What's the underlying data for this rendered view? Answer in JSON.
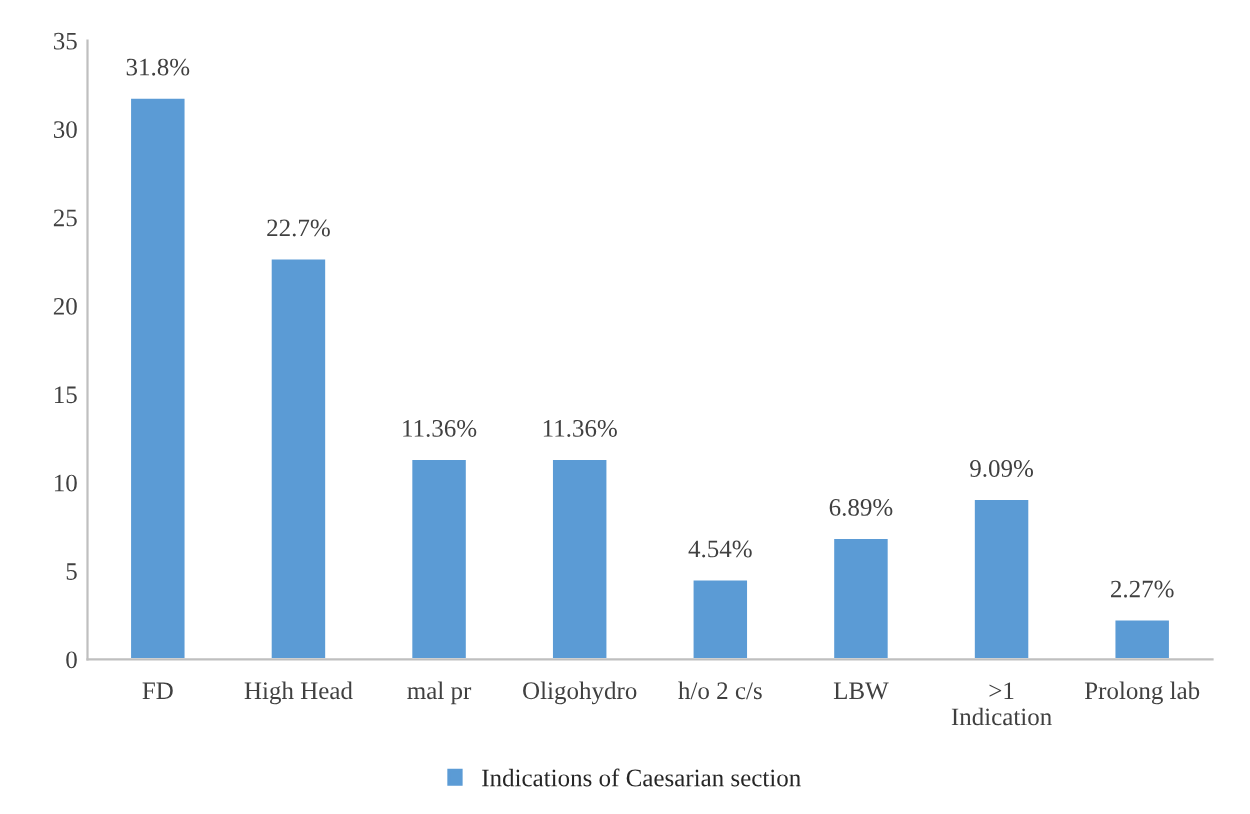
{
  "chart_data": {
    "type": "bar",
    "categories": [
      "FD",
      "High Head",
      "mal pr",
      "Oligohydro",
      "h/o 2 c/s",
      "LBW",
      ">1\nIndication",
      "Prolong lab"
    ],
    "series": [
      {
        "name": "Indications of Caesarian section",
        "color": "#5b9bd5",
        "values": [
          31.8,
          22.7,
          11.36,
          11.36,
          4.54,
          6.89,
          9.09,
          2.27
        ],
        "value_labels": [
          "31.8%",
          "22.7%",
          "11.36%",
          "11.36%",
          "4.54%",
          "6.89%",
          "9.09%",
          "2.27%"
        ]
      }
    ],
    "ylim": [
      0,
      35
    ],
    "yticks": [
      0,
      5,
      10,
      15,
      20,
      25,
      30,
      35
    ],
    "grid": false,
    "legend": "bottom"
  }
}
